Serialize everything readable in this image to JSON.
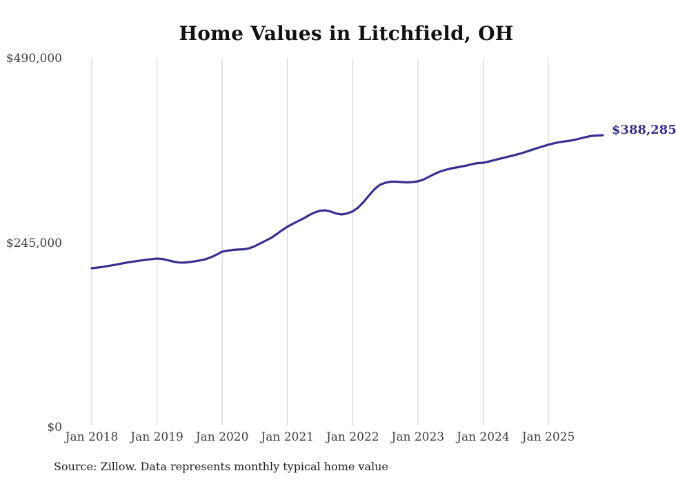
{
  "title": "Home Values in Litchfield, OH",
  "end_label": "$388,285",
  "source_note": "Source: Zillow. Data represents monthly typical home value",
  "colors": {
    "line": "#362f91",
    "end_label": "#362f91",
    "grid": "#cccccc",
    "title": "#111111",
    "axis_label": "#3f3f3f",
    "source": "#212121",
    "background": "#ffffff"
  },
  "axes": {
    "y": {
      "ticks": [
        {
          "label": "$490,000",
          "value": 490000
        },
        {
          "label": "$245,000",
          "value": 245000
        },
        {
          "label": "$0",
          "value": 0
        }
      ]
    },
    "x": {
      "ticks": [
        {
          "label": "Jan 2018",
          "month_index": 0
        },
        {
          "label": "Jan 2019",
          "month_index": 12
        },
        {
          "label": "Jan 2020",
          "month_index": 24
        },
        {
          "label": "Jan 2021",
          "month_index": 36
        },
        {
          "label": "Jan 2022",
          "month_index": 48
        },
        {
          "label": "Jan 2023",
          "month_index": 60
        },
        {
          "label": "Jan 2024",
          "month_index": 72
        },
        {
          "label": "Jan 2025",
          "month_index": 84
        }
      ]
    }
  },
  "chart_data": {
    "type": "line",
    "title": "Home Values in Litchfield, OH",
    "series_name": "Typical home value",
    "frequency": "monthly",
    "xlabel": "",
    "ylabel": "",
    "ylim": [
      0,
      490000
    ],
    "grid": "vertical-only",
    "legend": "none",
    "x_tick_labels": [
      "Jan 2018",
      "Jan 2019",
      "Jan 2020",
      "Jan 2021",
      "Jan 2022",
      "Jan 2023",
      "Jan 2024",
      "Jan 2025"
    ],
    "y_tick_labels": [
      "$0",
      "$245,000",
      "$490,000"
    ],
    "final_value": 388285,
    "final_value_label": "$388,285",
    "dates": [
      "2018-01",
      "2018-02",
      "2018-03",
      "2018-04",
      "2018-05",
      "2018-06",
      "2018-07",
      "2018-08",
      "2018-09",
      "2018-10",
      "2018-11",
      "2018-12",
      "2019-01",
      "2019-02",
      "2019-03",
      "2019-04",
      "2019-05",
      "2019-06",
      "2019-07",
      "2019-08",
      "2019-09",
      "2019-10",
      "2019-11",
      "2019-12",
      "2020-01",
      "2020-02",
      "2020-03",
      "2020-04",
      "2020-05",
      "2020-06",
      "2020-07",
      "2020-08",
      "2020-09",
      "2020-10",
      "2020-11",
      "2020-12",
      "2021-01",
      "2021-02",
      "2021-03",
      "2021-04",
      "2021-05",
      "2021-06",
      "2021-07",
      "2021-08",
      "2021-09",
      "2021-10",
      "2021-11",
      "2021-12",
      "2022-01",
      "2022-02",
      "2022-03",
      "2022-04",
      "2022-05",
      "2022-06",
      "2022-07",
      "2022-08",
      "2022-09",
      "2022-10",
      "2022-11",
      "2022-12",
      "2023-01",
      "2023-02",
      "2023-03",
      "2023-04",
      "2023-05",
      "2023-06",
      "2023-07",
      "2023-08",
      "2023-09",
      "2023-10",
      "2023-11",
      "2023-12",
      "2024-01",
      "2024-02",
      "2024-03",
      "2024-04",
      "2024-05",
      "2024-06",
      "2024-07",
      "2024-08",
      "2024-09",
      "2024-10",
      "2024-11",
      "2024-12",
      "2025-01",
      "2025-02",
      "2025-03",
      "2025-04",
      "2025-05",
      "2025-06",
      "2025-07",
      "2025-08",
      "2025-09",
      "2025-10",
      "2025-11"
    ],
    "values": [
      211600,
      212400,
      213300,
      214600,
      215800,
      217200,
      218500,
      219700,
      220800,
      221800,
      222800,
      223700,
      224400,
      223800,
      222200,
      220500,
      219200,
      219000,
      219800,
      220800,
      222000,
      223700,
      226300,
      229800,
      233600,
      234900,
      235900,
      236400,
      236800,
      238100,
      240900,
      244500,
      248200,
      251900,
      256900,
      261900,
      266800,
      270600,
      274300,
      277900,
      282100,
      285700,
      288000,
      288500,
      286800,
      284200,
      283000,
      284400,
      287000,
      292200,
      299500,
      308200,
      316400,
      322400,
      325100,
      326500,
      326500,
      326100,
      325600,
      326100,
      327000,
      329300,
      332900,
      336600,
      339800,
      342100,
      343900,
      345300,
      346700,
      348000,
      349900,
      351200,
      351600,
      353300,
      355100,
      356900,
      358700,
      360500,
      362300,
      364200,
      366500,
      368900,
      371300,
      373500,
      375600,
      377500,
      379000,
      380000,
      381000,
      382400,
      384200,
      386000,
      387400,
      387900,
      388285
    ]
  }
}
